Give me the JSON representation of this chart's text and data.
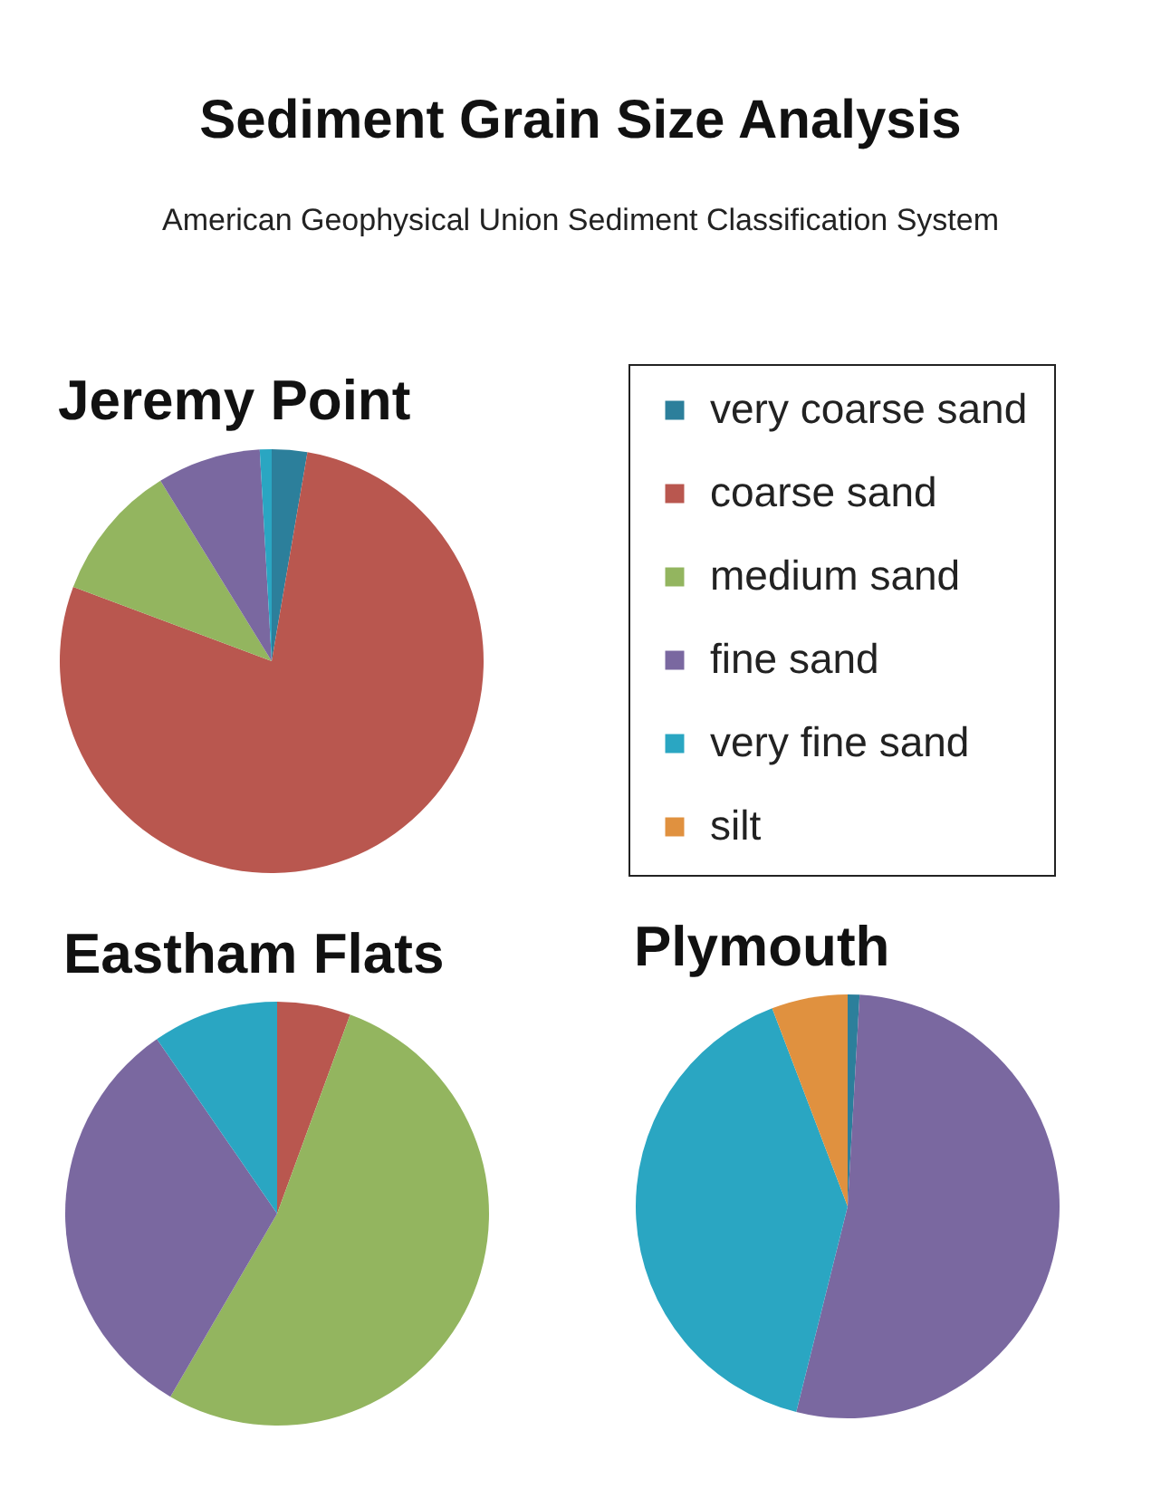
{
  "chart_data": [
    {
      "type": "other",
      "title": "Sediment Grain Size Analysis",
      "subtitle": "American Geophysical Union Sediment Classification System"
    },
    {
      "type": "pie",
      "title": "Jeremy Point",
      "categories": [
        "very coarse sand",
        "coarse sand",
        "medium sand",
        "fine sand",
        "very fine sand",
        "silt"
      ],
      "values": [
        2.7,
        78.0,
        10.5,
        7.9,
        0.9,
        0
      ],
      "colors": [
        "#2c7f9b",
        "#b9574f",
        "#93b55f",
        "#7a68a0",
        "#2aa6c2",
        "#e0913f"
      ],
      "legend": "right"
    },
    {
      "type": "pie",
      "title": "Eastham Flats",
      "values": [
        0,
        5.6,
        52.8,
        32.0,
        9.6,
        0
      ],
      "colors": [
        "#2c7f9b",
        "#b9574f",
        "#93b55f",
        "#7a68a0",
        "#2aa6c2",
        "#e0913f"
      ]
    },
    {
      "type": "pie",
      "title": "Plymouth",
      "values": [
        0.9,
        0,
        0,
        53.0,
        40.3,
        5.8
      ],
      "colors": [
        "#2c7f9b",
        "#b9574f",
        "#93b55f",
        "#7a68a0",
        "#2aa6c2",
        "#e0913f"
      ]
    }
  ]
}
